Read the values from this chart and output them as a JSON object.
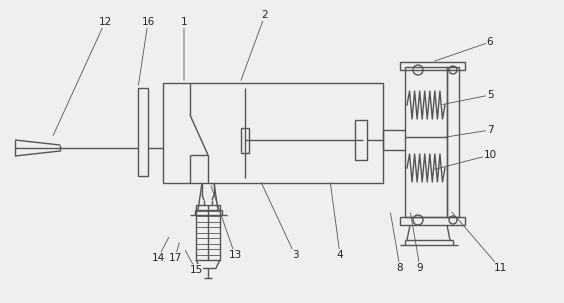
{
  "bg_color": "#efefef",
  "line_color": "#555555",
  "lw": 1.0,
  "tlw": 0.6,
  "figsize": [
    5.64,
    3.03
  ],
  "dpi": 100,
  "annotations": [
    [
      "12",
      105,
      22,
      52,
      138
    ],
    [
      "16",
      148,
      22,
      138,
      88
    ],
    [
      "1",
      184,
      22,
      184,
      83
    ],
    [
      "2",
      265,
      15,
      240,
      83
    ],
    [
      "6",
      490,
      42,
      432,
      62
    ],
    [
      "5",
      490,
      95,
      440,
      105
    ],
    [
      "7",
      490,
      130,
      440,
      138
    ],
    [
      "10",
      490,
      155,
      432,
      170
    ],
    [
      "3",
      295,
      255,
      260,
      180
    ],
    [
      "4",
      340,
      255,
      330,
      180
    ],
    [
      "8",
      400,
      268,
      390,
      210
    ],
    [
      "9",
      420,
      268,
      410,
      210
    ],
    [
      "11",
      500,
      268,
      450,
      210
    ],
    [
      "13",
      235,
      255,
      210,
      183
    ],
    [
      "14",
      158,
      258,
      170,
      235
    ],
    [
      "15",
      196,
      270,
      184,
      248
    ],
    [
      "17",
      175,
      258,
      180,
      240
    ]
  ]
}
